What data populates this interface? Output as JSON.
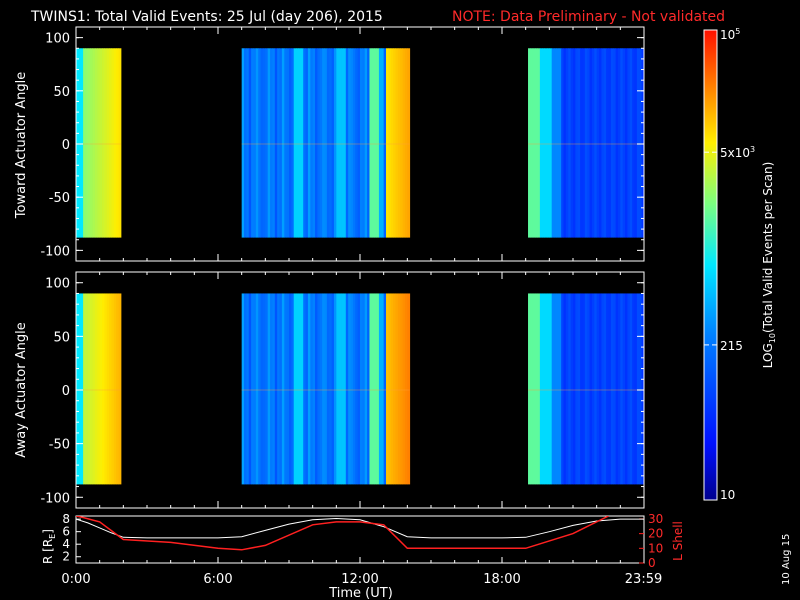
{
  "header": {
    "title": "TWINS1: Total Valid Events: 25 Jul (day 206), 2015",
    "note": "NOTE: Data Preliminary - Not validated"
  },
  "side_date": "10 Aug 15",
  "colors": {
    "note": "#ff2a2a",
    "background": "#000000",
    "axis": "#ffffff",
    "r_line": "#ffffff",
    "lshell_line": "#ff2020"
  },
  "chart_data": [
    {
      "type": "heatmap",
      "ylabel": "Toward Actuator Angle",
      "ylim": [
        -110,
        110
      ],
      "yticks": [
        100,
        50,
        0,
        -50,
        -100
      ],
      "angle_range": [
        -88,
        90
      ],
      "xlim_hours": [
        0,
        24
      ],
      "time_bands_hours": [
        [
          -0.1,
          1.9
        ],
        [
          7.0,
          14.1
        ],
        [
          19.1,
          24.0
        ]
      ],
      "grid": false
    },
    {
      "type": "heatmap",
      "ylabel": "Away Actuator Angle",
      "ylim": [
        -110,
        110
      ],
      "yticks": [
        100,
        50,
        0,
        -50,
        -100
      ],
      "angle_range": [
        -88,
        90
      ],
      "xlim_hours": [
        0,
        24
      ],
      "time_bands_hours": [
        [
          -0.1,
          1.9
        ],
        [
          7.0,
          14.1
        ],
        [
          19.1,
          24.0
        ]
      ],
      "grid": false
    },
    {
      "type": "line",
      "xlabel": "Time (UT)",
      "xticks": [
        "0:00",
        "6:00",
        "12:00",
        "18:00",
        "23:59"
      ],
      "xtick_hours": [
        0,
        6,
        12,
        18,
        23.98
      ],
      "ylabel_left": "R [R",
      "ylabel_left_sub": "E",
      "ylabel_left_close": "]",
      "ylim_left": [
        1,
        8.5
      ],
      "yticks_left": [
        8,
        6,
        4,
        2
      ],
      "ylabel_right": "L Shell",
      "ylim_right": [
        0,
        32
      ],
      "yticks_right": [
        30,
        20,
        10,
        0
      ],
      "series": [
        {
          "name": "R",
          "axis": "left",
          "x": [
            0,
            0.5,
            1,
            1.5,
            2,
            3,
            4,
            5,
            6,
            7,
            8,
            9,
            10,
            11,
            12,
            13,
            14,
            15,
            16,
            17,
            18,
            19,
            20,
            21,
            22,
            23,
            24
          ],
          "y": [
            8.0,
            7.4,
            6.6,
            5.8,
            5.1,
            5.0,
            5.0,
            5.0,
            5.0,
            5.2,
            6.2,
            7.2,
            7.9,
            8.1,
            7.9,
            6.8,
            5.2,
            5.0,
            5.0,
            5.0,
            5.0,
            5.1,
            6.0,
            7.0,
            7.7,
            8.0,
            8.0
          ]
        },
        {
          "name": "L Shell",
          "axis": "right",
          "x": [
            0,
            0.3,
            1,
            2,
            4,
            6,
            7,
            8,
            10,
            11,
            12,
            13,
            14,
            15,
            17,
            19,
            21,
            22.5
          ],
          "y": [
            32,
            31,
            28,
            16,
            14,
            10,
            9,
            12,
            26,
            28,
            28,
            26,
            10,
            10,
            10,
            10,
            20,
            32
          ]
        }
      ]
    }
  ],
  "colorbar": {
    "label_prefix": "LOG",
    "label_sub": "10",
    "label_suffix": "(Total Valid  Events per Scan)",
    "ticks": [
      {
        "frac": 1.0,
        "base": "10",
        "exp": "5"
      },
      {
        "frac": 0.74,
        "base": "5x10",
        "exp": "3"
      },
      {
        "frac": 0.33,
        "base": "215",
        "exp": ""
      },
      {
        "frac": 0.0,
        "base": "10",
        "exp": ""
      }
    ]
  }
}
